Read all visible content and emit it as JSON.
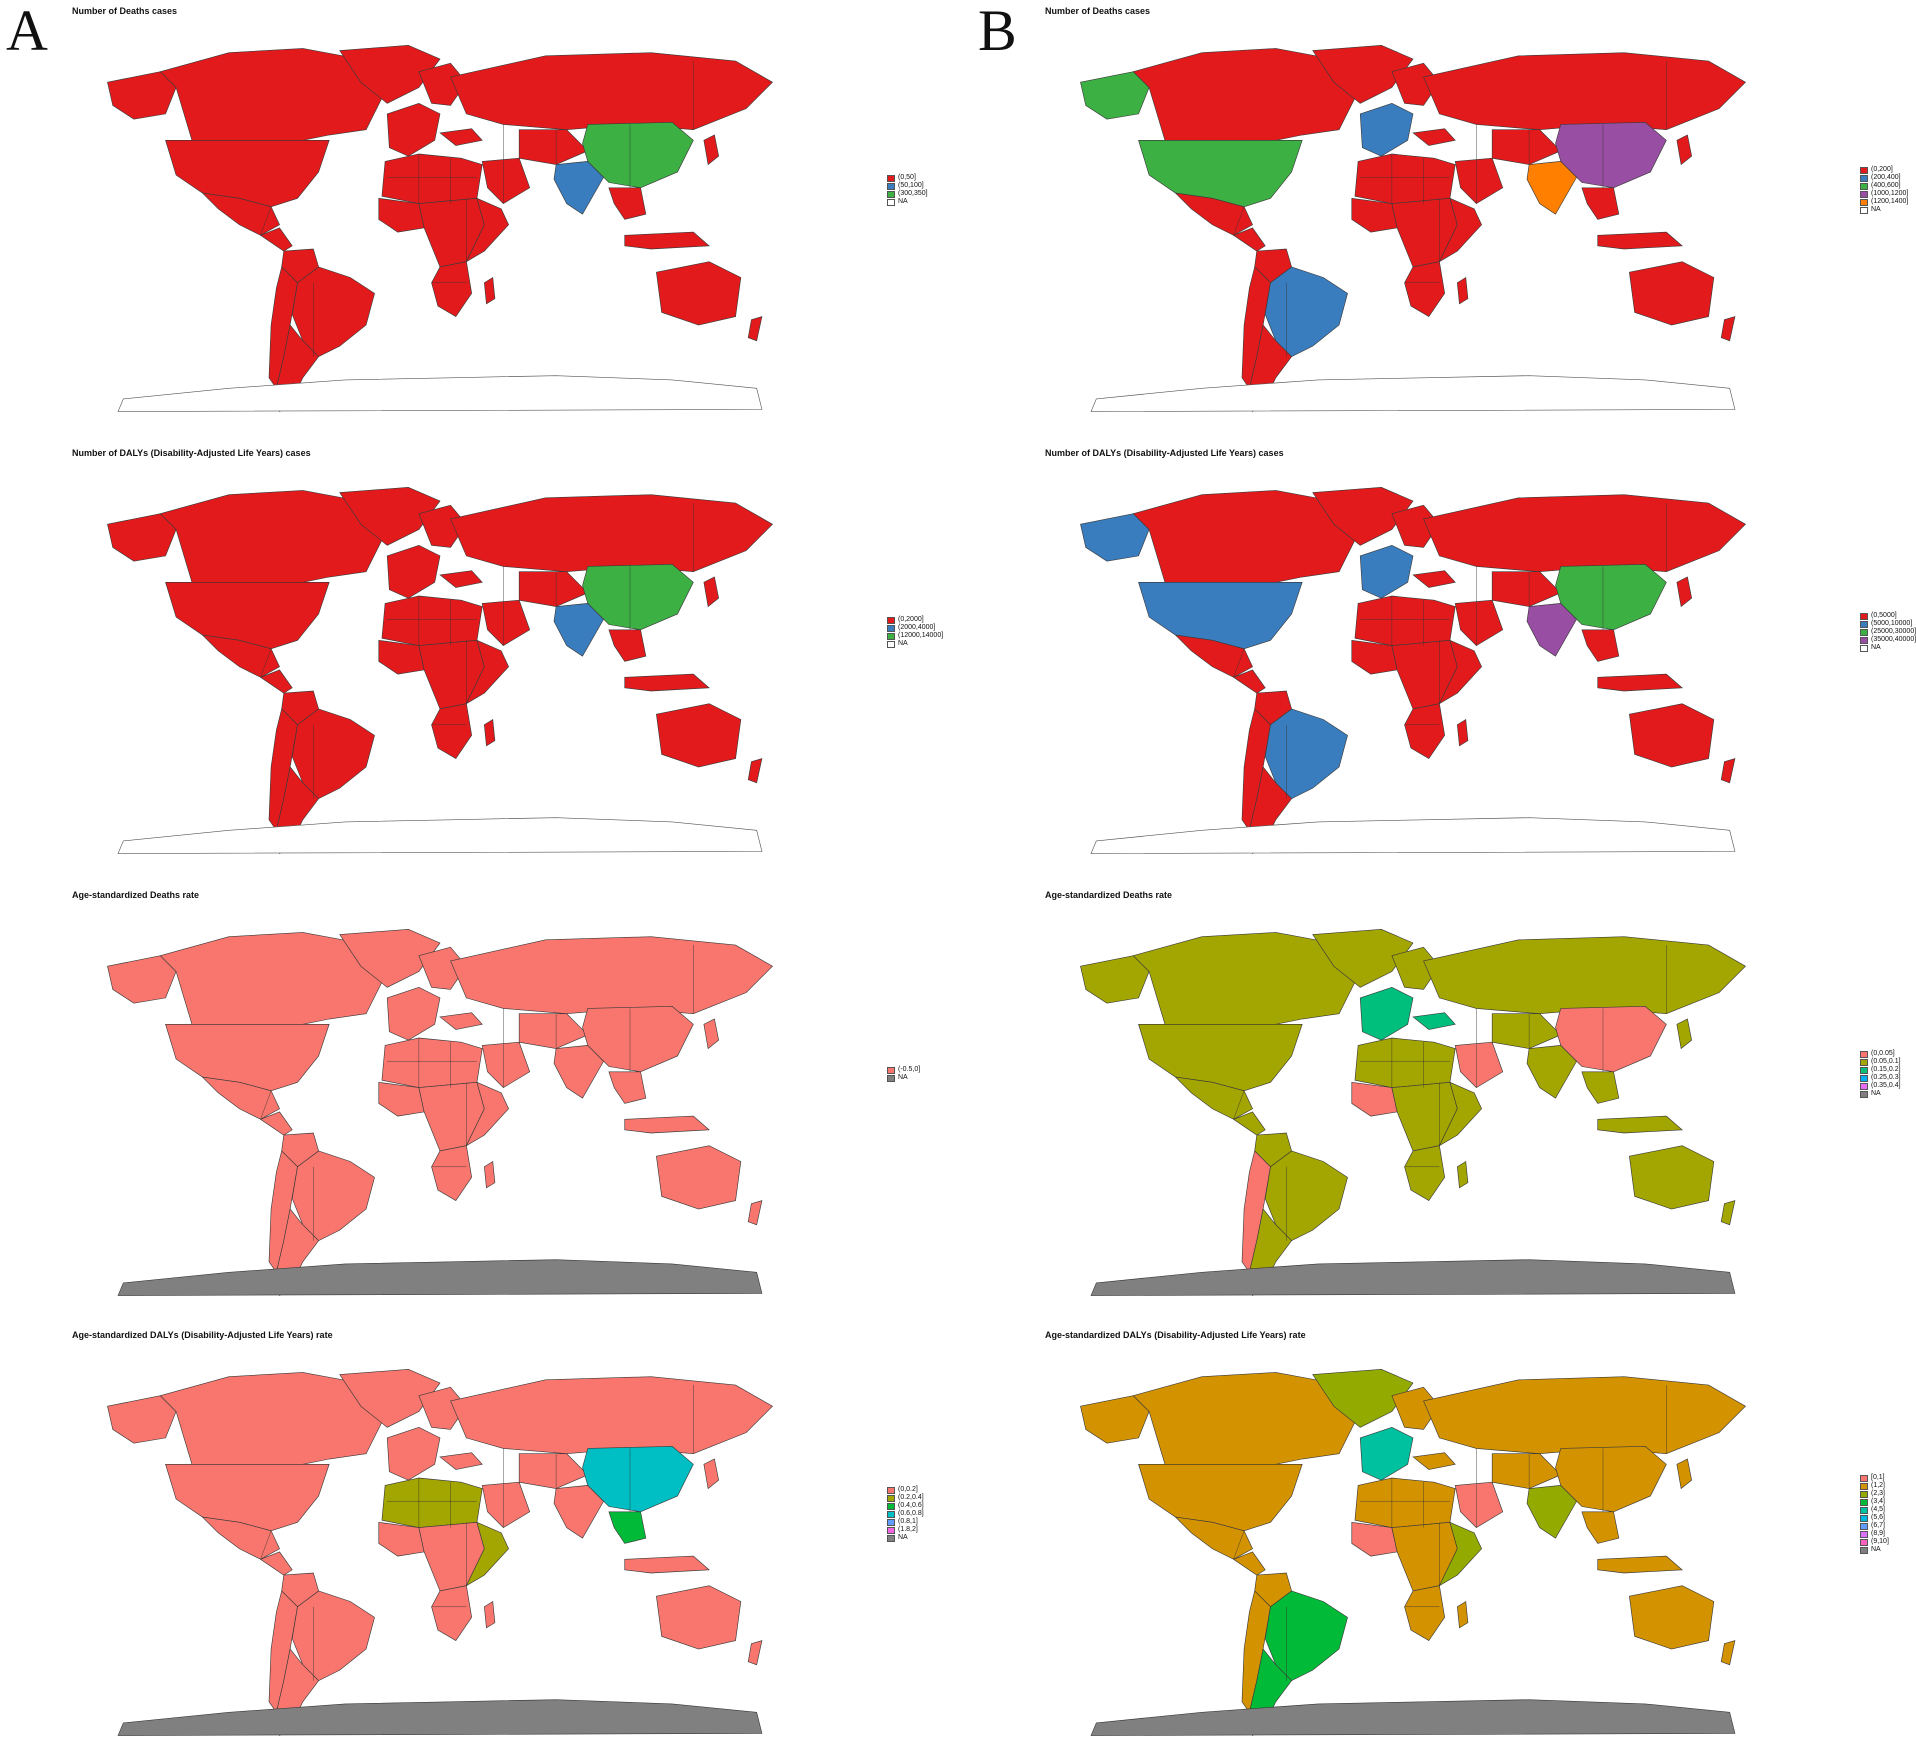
{
  "panels": [
    {
      "letter": "A",
      "maps": [
        {
          "title": "Number of Deaths cases",
          "base_color": "#e31a1c",
          "antarctica": "outline",
          "highlights": {
            "china": "#3cb043",
            "india": "#3a7dbf"
          },
          "legend": [
            {
              "label": "(0,50]",
              "color": "#e31a1c"
            },
            {
              "label": "(50,100]",
              "color": "#3a7dbf"
            },
            {
              "label": "(300,350]",
              "color": "#3cb043"
            },
            {
              "label": "NA",
              "color": "#ffffff"
            }
          ]
        },
        {
          "title": "Number of DALYs (Disability-Adjusted Life Years) cases",
          "base_color": "#e31a1c",
          "antarctica": "outline",
          "highlights": {
            "china": "#3cb043",
            "india": "#3a7dbf"
          },
          "legend": [
            {
              "label": "(0,2000]",
              "color": "#e31a1c"
            },
            {
              "label": "(2000,4000]",
              "color": "#3a7dbf"
            },
            {
              "label": "(12000,14000]",
              "color": "#3cb043"
            },
            {
              "label": "NA",
              "color": "#ffffff"
            }
          ]
        },
        {
          "title": "Age-standardized Deaths rate",
          "base_color": "#f8766d",
          "antarctica": "#808080",
          "highlights": {},
          "legend": [
            {
              "label": "(-0.5,0]",
              "color": "#f8766d"
            },
            {
              "label": "NA",
              "color": "#808080"
            }
          ]
        },
        {
          "title": "Age-standardized DALYs (Disability-Adjusted Life Years) rate",
          "base_color": "#f8766d",
          "antarctica": "#808080",
          "highlights": {
            "china": "#00bfc4",
            "north_africa": "#a3a500",
            "east_africa": "#a3a500",
            "se_asia": "#00ba38"
          },
          "legend": [
            {
              "label": "(0,0.2]",
              "color": "#f8766d"
            },
            {
              "label": "(0.2,0.4]",
              "color": "#a3a500"
            },
            {
              "label": "(0.4,0.6]",
              "color": "#00ba38"
            },
            {
              "label": "(0.6,0.8]",
              "color": "#00bfc4"
            },
            {
              "label": "(0.8,1]",
              "color": "#619cff"
            },
            {
              "label": "(1.8,2]",
              "color": "#f564e3"
            },
            {
              "label": "NA",
              "color": "#808080"
            }
          ]
        }
      ]
    },
    {
      "letter": "B",
      "maps": [
        {
          "title": "Number of Deaths cases",
          "base_color": "#e31a1c",
          "antarctica": "outline",
          "highlights": {
            "usa": "#3cb043",
            "alaska": "#3cb043",
            "brazil": "#3a7dbf",
            "china": "#984ea3",
            "india": "#ff7f00",
            "europe_w": "#3a7dbf"
          },
          "legend": [
            {
              "label": "(0,200]",
              "color": "#e31a1c"
            },
            {
              "label": "(200,400]",
              "color": "#3a7dbf"
            },
            {
              "label": "(400,600]",
              "color": "#3cb043"
            },
            {
              "label": "(1000,1200]",
              "color": "#984ea3"
            },
            {
              "label": "(1200,1400]",
              "color": "#ff7f00"
            },
            {
              "label": "NA",
              "color": "#ffffff"
            }
          ]
        },
        {
          "title": "Number of DALYs (Disability-Adjusted Life Years) cases",
          "base_color": "#e31a1c",
          "antarctica": "outline",
          "highlights": {
            "usa": "#3a7dbf",
            "alaska": "#3a7dbf",
            "brazil": "#3a7dbf",
            "china": "#3cb043",
            "india": "#984ea3",
            "europe_w": "#3a7dbf"
          },
          "legend": [
            {
              "label": "(0,5000]",
              "color": "#e31a1c"
            },
            {
              "label": "(5000,10000]",
              "color": "#3a7dbf"
            },
            {
              "label": "(25000,30000]",
              "color": "#3cb043"
            },
            {
              "label": "(35000,40000]",
              "color": "#984ea3"
            },
            {
              "label": "NA",
              "color": "#ffffff"
            }
          ]
        },
        {
          "title": "Age-standardized Deaths rate",
          "base_color": "#a3a500",
          "antarctica": "#808080",
          "highlights": {
            "china": "#f8766d",
            "west_africa": "#f8766d",
            "andes": "#f8766d",
            "arabia": "#f8766d",
            "europe_w": "#00bf7d",
            "turkey": "#00bf7d"
          },
          "legend": [
            {
              "label": "(0,0.05]",
              "color": "#f8766d"
            },
            {
              "label": "(0.05,0.1]",
              "color": "#a3a500"
            },
            {
              "label": "(0.15,0.2]",
              "color": "#00bf7d"
            },
            {
              "label": "(0.25,0.3]",
              "color": "#00b0f6"
            },
            {
              "label": "(0.35,0.4]",
              "color": "#e76bf3"
            },
            {
              "label": "NA",
              "color": "#808080"
            }
          ]
        },
        {
          "title": "Age-standardized DALYs (Disability-Adjusted Life Years) rate",
          "base_color": "#d39200",
          "antarctica": "#808080",
          "highlights": {
            "greenland": "#93aa00",
            "brazil": "#00ba38",
            "argentina": "#00ba38",
            "west_africa": "#f8766d",
            "arabia": "#f8766d",
            "india": "#93aa00",
            "europe_w": "#00c19f",
            "east_africa": "#93aa00"
          },
          "legend": [
            {
              "label": "[0,1]",
              "color": "#f8766d"
            },
            {
              "label": "(1,2]",
              "color": "#d39200"
            },
            {
              "label": "(2,3]",
              "color": "#93aa00"
            },
            {
              "label": "(3,4]",
              "color": "#00ba38"
            },
            {
              "label": "(4,5]",
              "color": "#00c19f"
            },
            {
              "label": "(5,6]",
              "color": "#00b9e3"
            },
            {
              "label": "(6,7]",
              "color": "#619cff"
            },
            {
              "label": "(8,9]",
              "color": "#db72fb"
            },
            {
              "label": "(9,10]",
              "color": "#ff61c3"
            },
            {
              "label": "NA",
              "color": "#808080"
            }
          ]
        }
      ]
    }
  ]
}
